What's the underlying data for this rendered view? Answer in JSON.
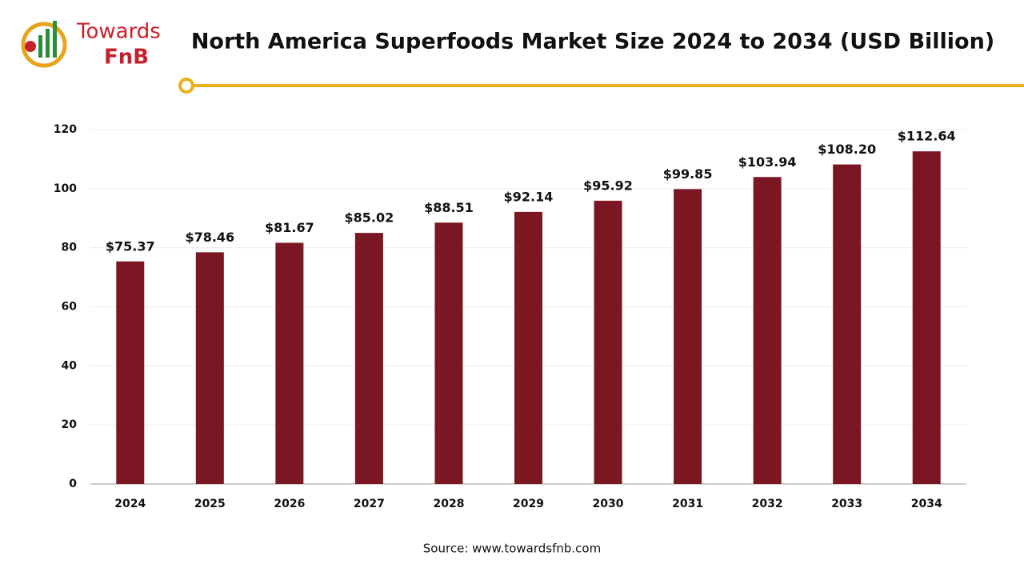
{
  "logo": {
    "line1": "Towards",
    "line2": "FnB"
  },
  "chart_data": {
    "type": "bar",
    "title": "North America Superfoods Market Size 2024 to 2034 (USD Billion)",
    "categories": [
      "2024",
      "2025",
      "2026",
      "2027",
      "2028",
      "2029",
      "2030",
      "2031",
      "2032",
      "2033",
      "2034"
    ],
    "values": [
      75.37,
      78.46,
      81.67,
      85.02,
      88.51,
      92.14,
      95.92,
      99.85,
      103.94,
      108.2,
      112.64
    ],
    "value_labels": [
      "$75.37",
      "$78.46",
      "$81.67",
      "$85.02",
      "$88.51",
      "$92.14",
      "$95.92",
      "$99.85",
      "$103.94",
      "$108.20",
      "$112.64"
    ],
    "color": "#7a1722",
    "ylim": [
      0,
      120
    ],
    "yticks": [
      0,
      20,
      40,
      60,
      80,
      100,
      120
    ],
    "grid": true,
    "source": "Source: www.towardsfnb.com"
  }
}
